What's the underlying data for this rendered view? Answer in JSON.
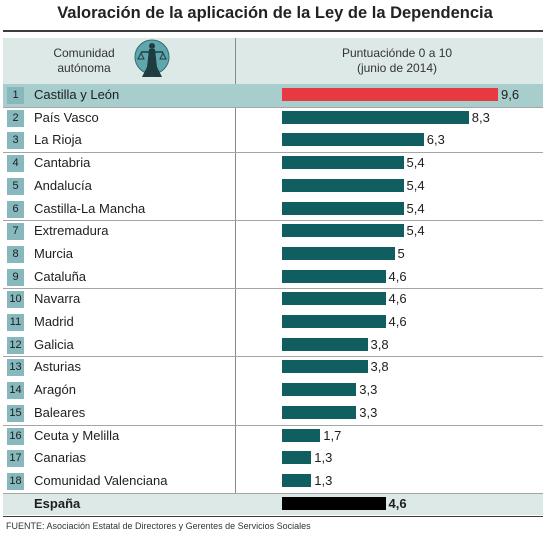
{
  "title": "Valoración de la aplicación de la Ley de la Dependencia",
  "header": {
    "left_line1": "Comunidad",
    "left_line2": "autónoma",
    "right_line1": "Puntuaciónde 0 a 10",
    "right_line2": "(junio de 2014)"
  },
  "source": "FUENTE: Asociación Estatal de Directores y Gerentes de Servicios Sociales",
  "colors": {
    "bar": "#115e60",
    "top_bar": "#e63a40",
    "total_bar": "#000000",
    "rank_badge": "#86b8bd",
    "highlight_row": "#a7cdcd",
    "header_band": "#dde9e6"
  },
  "chart_data": {
    "type": "bar",
    "orientation": "horizontal",
    "title": "Valoración de la aplicación de la Ley de la Dependencia",
    "value_range": [
      0,
      10
    ],
    "grid": false,
    "rows": [
      {
        "rank": "1",
        "name": "Castilla y León",
        "value": 9.6,
        "label": "9,6"
      },
      {
        "rank": "2",
        "name": "País Vasco",
        "value": 8.3,
        "label": "8,3"
      },
      {
        "rank": "3",
        "name": "La Rioja",
        "value": 6.3,
        "label": "6,3"
      },
      {
        "rank": "4",
        "name": "Cantabria",
        "value": 5.4,
        "label": "5,4"
      },
      {
        "rank": "5",
        "name": "Andalucía",
        "value": 5.4,
        "label": "5,4"
      },
      {
        "rank": "6",
        "name": "Castilla-La Mancha",
        "value": 5.4,
        "label": "5,4"
      },
      {
        "rank": "7",
        "name": "Extremadura",
        "value": 5.4,
        "label": "5,4"
      },
      {
        "rank": "8",
        "name": "Murcia",
        "value": 5,
        "label": "5"
      },
      {
        "rank": "9",
        "name": "Cataluña",
        "value": 4.6,
        "label": "4,6"
      },
      {
        "rank": "10",
        "name": "Navarra",
        "value": 4.6,
        "label": "4,6"
      },
      {
        "rank": "11",
        "name": "Madrid",
        "value": 4.6,
        "label": "4,6"
      },
      {
        "rank": "12",
        "name": "Galicia",
        "value": 3.8,
        "label": "3,8"
      },
      {
        "rank": "13",
        "name": "Asturias",
        "value": 3.8,
        "label": "3,8"
      },
      {
        "rank": "14",
        "name": "Aragón",
        "value": 3.3,
        "label": "3,3"
      },
      {
        "rank": "15",
        "name": "Baleares",
        "value": 3.3,
        "label": "3,3"
      },
      {
        "rank": "16",
        "name": "Ceuta y Melilla",
        "value": 1.7,
        "label": "1,7"
      },
      {
        "rank": "17",
        "name": "Canarias",
        "value": 1.3,
        "label": "1,3"
      },
      {
        "rank": "18",
        "name": "Comunidad Valenciana",
        "value": 1.3,
        "label": "1,3"
      }
    ],
    "total": {
      "name": "España",
      "value": 4.6,
      "label": "4,6"
    }
  }
}
